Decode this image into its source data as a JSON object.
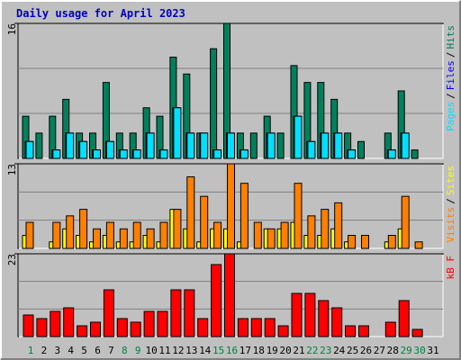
{
  "title": "Daily usage for April 2023",
  "legend_separator": "/",
  "chart_data": [
    {
      "type": "bar",
      "ylim": [
        0,
        16
      ],
      "yticks": [
        16
      ],
      "series": [
        {
          "name": "Hits",
          "color": "#00805c",
          "values": [
            5,
            3,
            5,
            7,
            3,
            3,
            9,
            3,
            3,
            6,
            5,
            12,
            10,
            3,
            13,
            16,
            3,
            3,
            5,
            3,
            11,
            9,
            9,
            7,
            3,
            2,
            0,
            3,
            8,
            1,
            0
          ]
        },
        {
          "name": "Files",
          "color": "#0000ff",
          "values": [
            2,
            0,
            1,
            3,
            2,
            1,
            2,
            1,
            1,
            3,
            1,
            6,
            3,
            3,
            1,
            3,
            1,
            0,
            3,
            0,
            5,
            2,
            3,
            3,
            1,
            0,
            0,
            1,
            3,
            0,
            0
          ]
        },
        {
          "name": "Pages",
          "color": "#00e0ff",
          "values": [
            2,
            0,
            1,
            3,
            2,
            1,
            2,
            1,
            1,
            3,
            1,
            6,
            3,
            3,
            1,
            3,
            1,
            0,
            3,
            0,
            5,
            2,
            3,
            3,
            1,
            0,
            0,
            1,
            3,
            0,
            0
          ]
        }
      ]
    },
    {
      "type": "bar",
      "ylim": [
        0,
        13
      ],
      "yticks": [
        13
      ],
      "series": [
        {
          "name": "Sites",
          "color": "#ffff00",
          "values": [
            2,
            0,
            1,
            3,
            2,
            1,
            2,
            1,
            1,
            2,
            1,
            6,
            3,
            1,
            3,
            3,
            1,
            0,
            3,
            3,
            4,
            2,
            2,
            3,
            1,
            0,
            0,
            1,
            3,
            0,
            0
          ]
        },
        {
          "name": "Visits",
          "color": "#ff8000",
          "values": [
            4,
            0,
            4,
            5,
            6,
            3,
            4,
            3,
            4,
            3,
            4,
            6,
            11,
            8,
            4,
            13,
            10,
            4,
            3,
            4,
            10,
            5,
            6,
            7,
            2,
            2,
            0,
            2,
            8,
            1,
            0
          ]
        }
      ]
    },
    {
      "type": "bar",
      "ylim": [
        0,
        23
      ],
      "yticks": [
        23
      ],
      "categories": [
        "1",
        "2",
        "3",
        "4",
        "5",
        "6",
        "7",
        "8",
        "9",
        "10",
        "11",
        "12",
        "13",
        "14",
        "15",
        "16",
        "17",
        "18",
        "19",
        "20",
        "21",
        "22",
        "23",
        "24",
        "25",
        "26",
        "27",
        "28",
        "29",
        "30",
        "31"
      ],
      "label_colors": [
        "#008040",
        "#000000",
        "#000000",
        "#000000",
        "#000000",
        "#000000",
        "#000000",
        "#008040",
        "#008040",
        "#000000",
        "#000000",
        "#000000",
        "#000000",
        "#000000",
        "#008040",
        "#008040",
        "#000000",
        "#000000",
        "#000000",
        "#000000",
        "#000000",
        "#008040",
        "#008040",
        "#000000",
        "#000000",
        "#000000",
        "#000000",
        "#000000",
        "#008040",
        "#008040",
        "#000000"
      ],
      "series": [
        {
          "name": "kB F",
          "color": "#ff0000",
          "values": [
            6,
            5,
            7,
            8,
            3,
            4,
            13,
            5,
            4,
            7,
            7,
            13,
            13,
            5,
            20,
            23,
            5,
            5,
            5,
            3,
            12,
            12,
            10,
            8,
            3,
            3,
            0,
            4,
            10,
            2,
            0
          ]
        }
      ]
    }
  ]
}
